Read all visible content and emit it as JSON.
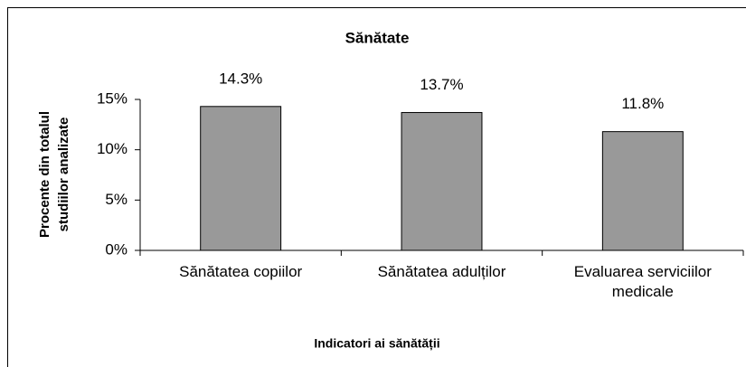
{
  "chart_data": {
    "type": "bar",
    "title": "Sănătate",
    "ylabel": [
      "Procente din totalul",
      "studiilor analizate"
    ],
    "xlabel": "Indicatori ai sănătății",
    "categories": [
      "Sănătatea copiilor",
      "Sănătatea adulților",
      "Evaluarea serviciilor medicale"
    ],
    "values": [
      14.3,
      13.7,
      11.8
    ],
    "value_labels": [
      "14.3%",
      "13.7%",
      "11.8%"
    ],
    "color": "#999999",
    "ylim": [
      0,
      15
    ],
    "yticks": [
      {
        "value": 0,
        "label": "0%"
      },
      {
        "value": 5,
        "label": "5%"
      },
      {
        "value": 10,
        "label": "10%"
      },
      {
        "value": 15,
        "label": "15%"
      }
    ],
    "grid": false
  }
}
